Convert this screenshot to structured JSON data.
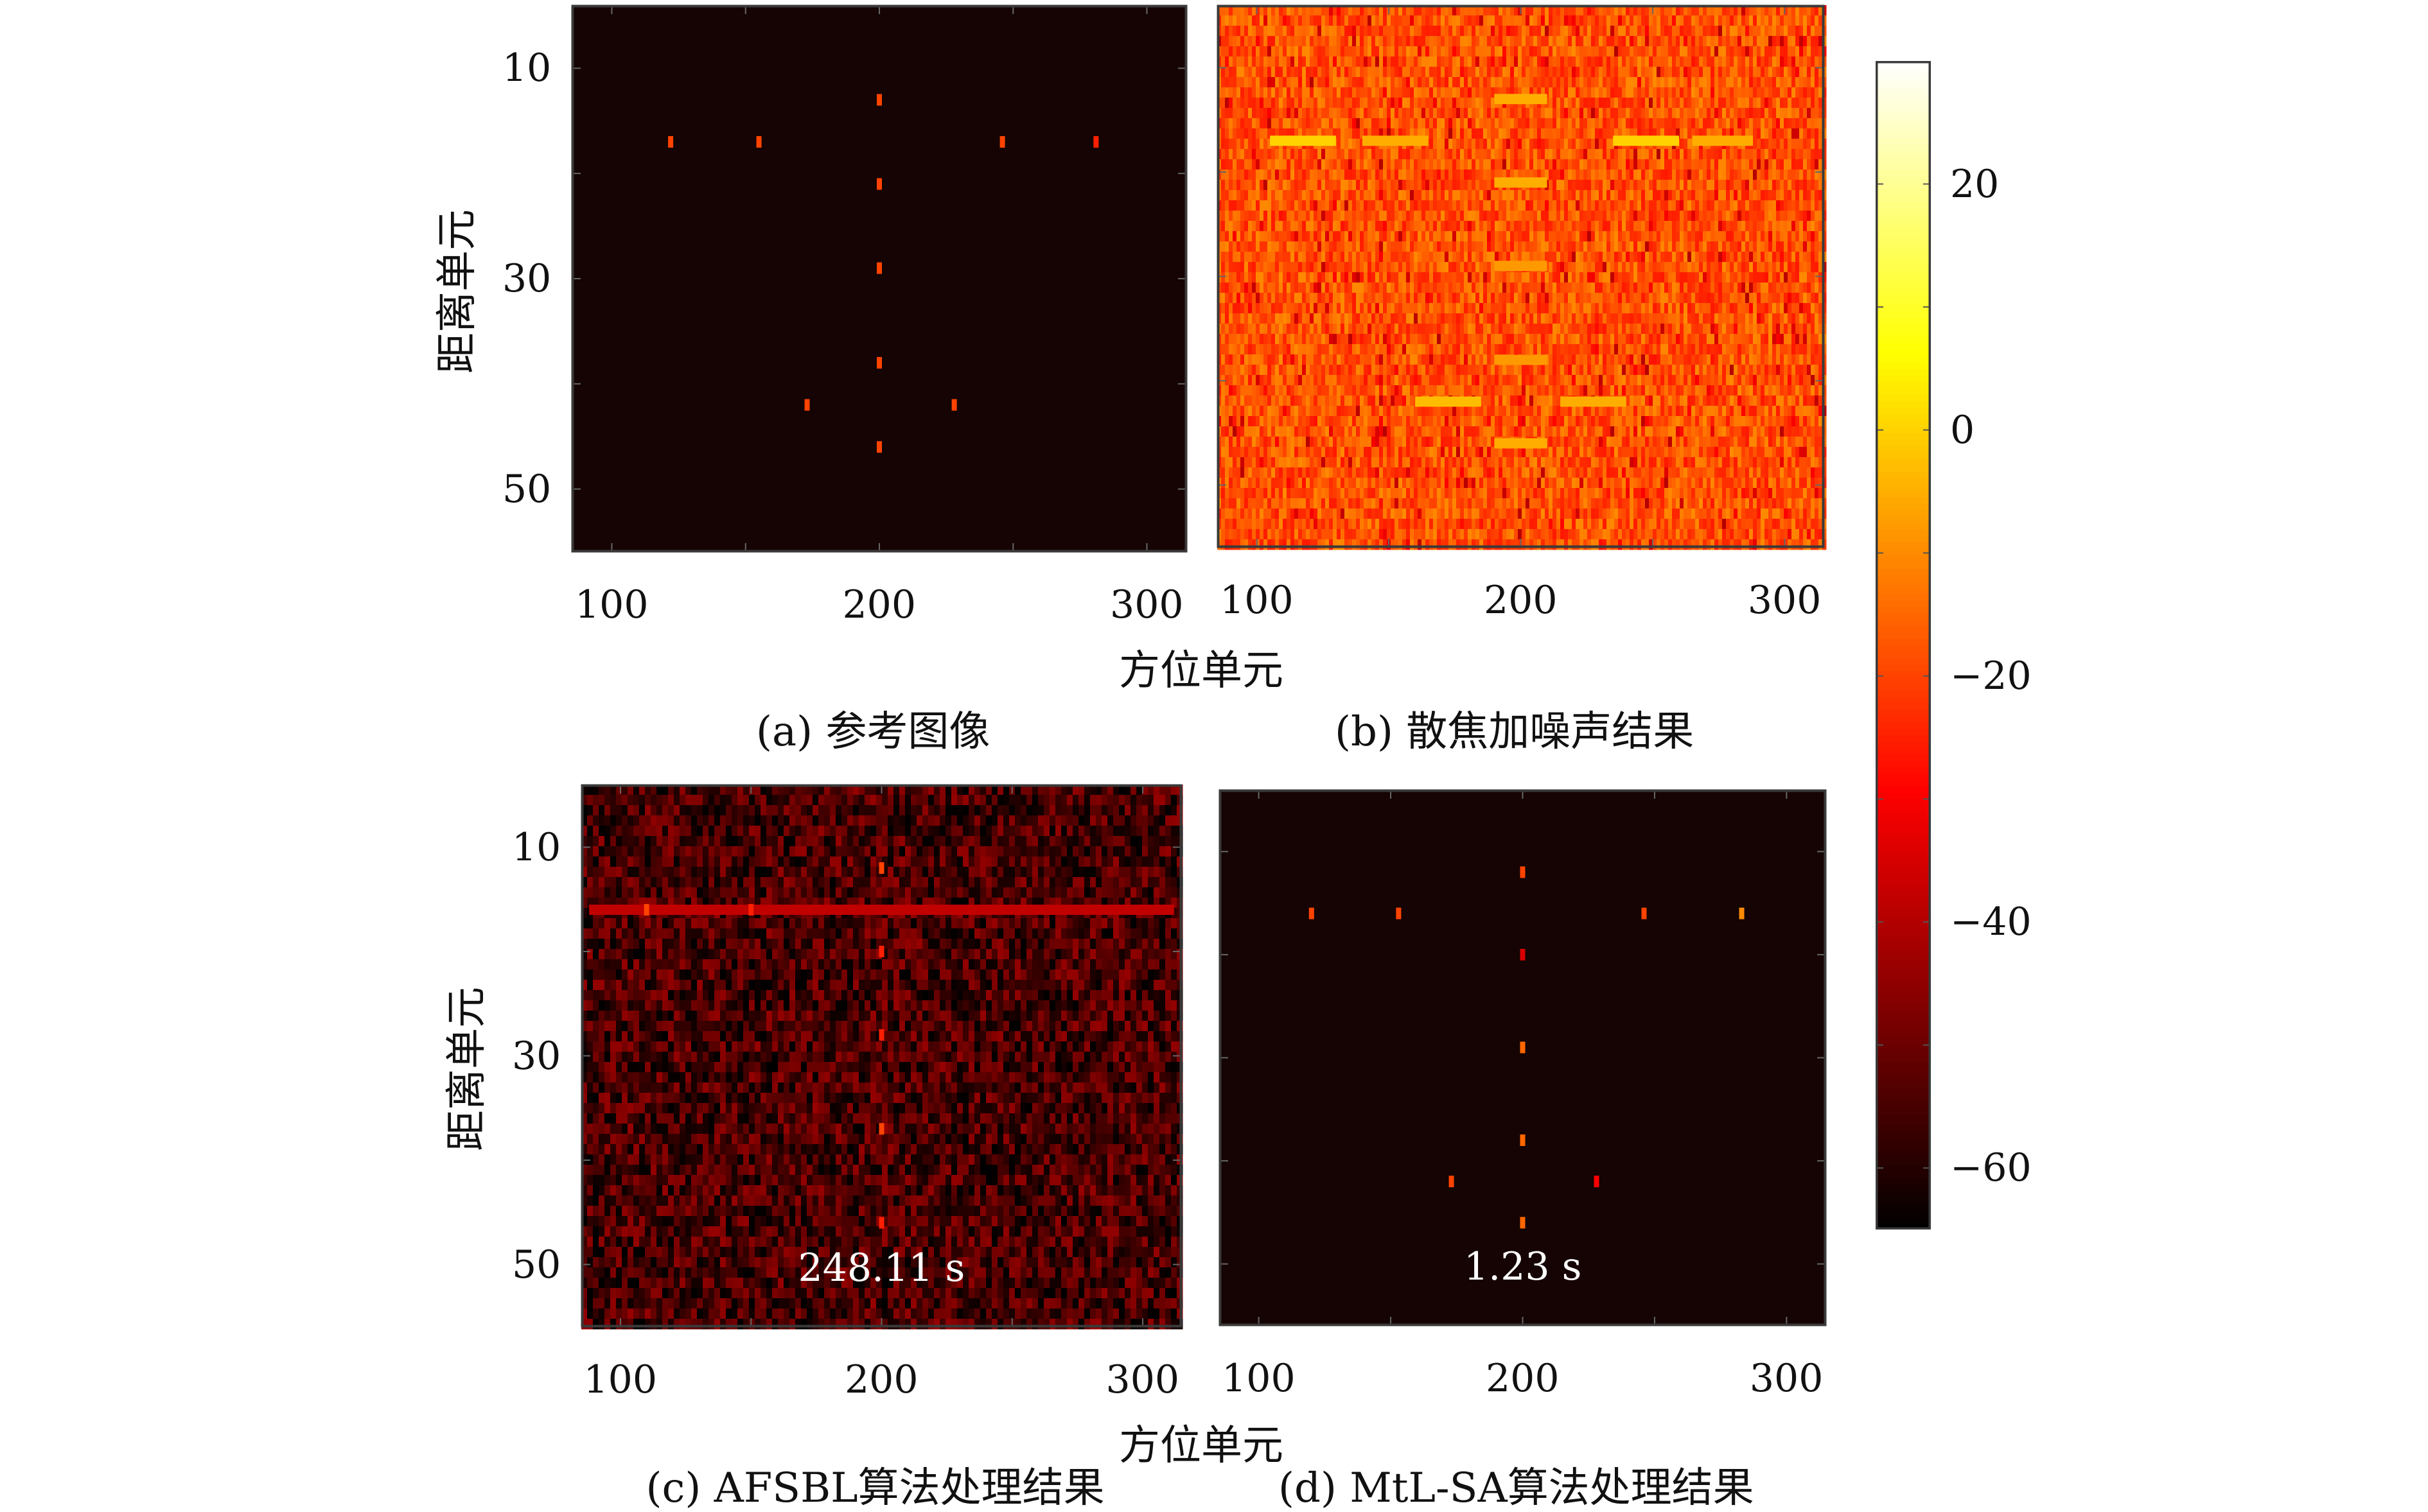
{
  "chart_data": {
    "type": "heatmap",
    "colormap": "hot",
    "colorbar": {
      "ticks": [
        20,
        0,
        -20,
        -40,
        -60
      ],
      "tick_labels": [
        "20",
        "0",
        "−20",
        "−40",
        "−60"
      ],
      "range": [
        -65,
        30
      ]
    },
    "x_range": [
      85,
      315
    ],
    "y_range": [
      4,
      56
    ],
    "panels": [
      {
        "id": "a",
        "caption": "(a) 参考图像",
        "background": "black",
        "xticks": [
          "100",
          "200",
          "300"
        ],
        "yticks": [
          "10",
          "30",
          "50"
        ],
        "ylabel": "距离单元",
        "xlabel": "方位单元",
        "time": "",
        "points": [
          {
            "x": 200,
            "y": 13,
            "v": -20
          },
          {
            "x": 122,
            "y": 17,
            "v": -20
          },
          {
            "x": 155,
            "y": 17,
            "v": -20
          },
          {
            "x": 246,
            "y": 17,
            "v": -20
          },
          {
            "x": 281,
            "y": 17,
            "v": -25
          },
          {
            "x": 200,
            "y": 21,
            "v": -20
          },
          {
            "x": 200,
            "y": 29,
            "v": -20
          },
          {
            "x": 200,
            "y": 38,
            "v": -20
          },
          {
            "x": 173,
            "y": 42,
            "v": -20
          },
          {
            "x": 228,
            "y": 42,
            "v": -20
          },
          {
            "x": 200,
            "y": 46,
            "v": -20
          }
        ]
      },
      {
        "id": "b",
        "caption": "(b) 散焦加噪声结果",
        "background": "noise-high",
        "xticks": [
          "100",
          "200",
          "300"
        ],
        "yticks": [],
        "ylabel": "",
        "xlabel": "",
        "time": "",
        "streaks": [
          {
            "x1": 190,
            "x2": 210,
            "y": 13,
            "v": -5
          },
          {
            "x1": 105,
            "x2": 130,
            "y": 17,
            "v": 0
          },
          {
            "x1": 140,
            "x2": 165,
            "y": 17,
            "v": -5
          },
          {
            "x1": 235,
            "x2": 260,
            "y": 17,
            "v": 0
          },
          {
            "x1": 265,
            "x2": 288,
            "y": 17,
            "v": -5
          },
          {
            "x1": 190,
            "x2": 210,
            "y": 21,
            "v": -5
          },
          {
            "x1": 190,
            "x2": 210,
            "y": 29,
            "v": -8
          },
          {
            "x1": 190,
            "x2": 210,
            "y": 38,
            "v": -8
          },
          {
            "x1": 160,
            "x2": 185,
            "y": 42,
            "v": -3
          },
          {
            "x1": 215,
            "x2": 240,
            "y": 42,
            "v": -5
          },
          {
            "x1": 190,
            "x2": 210,
            "y": 46,
            "v": -5
          }
        ]
      },
      {
        "id": "c",
        "caption": "(c) AFSBL算法处理结果",
        "background": "noise-low",
        "xticks": [
          "100",
          "200",
          "300"
        ],
        "yticks": [
          "10",
          "30",
          "50"
        ],
        "ylabel": "距离单元",
        "xlabel": "方位单元",
        "time": "248.11 s",
        "points": [
          {
            "x": 200,
            "y": 12,
            "v": -20
          },
          {
            "x": 110,
            "y": 16,
            "v": -20
          },
          {
            "x": 150,
            "y": 16,
            "v": -25
          },
          {
            "x": 200,
            "y": 20,
            "v": -25
          },
          {
            "x": 200,
            "y": 28,
            "v": -25
          },
          {
            "x": 200,
            "y": 37,
            "v": -20
          },
          {
            "x": 200,
            "y": 46,
            "v": -25
          }
        ],
        "streaks": [
          {
            "x1": 88,
            "x2": 312,
            "y": 16,
            "v": -38
          }
        ]
      },
      {
        "id": "d",
        "caption": "(d) MtL-SA算法处理结果",
        "background": "black",
        "xticks": [
          "100",
          "200",
          "300"
        ],
        "yticks": [],
        "ylabel": "",
        "xlabel": "",
        "time": "1.23 s",
        "points": [
          {
            "x": 200,
            "y": 12,
            "v": -20
          },
          {
            "x": 120,
            "y": 16,
            "v": -20
          },
          {
            "x": 153,
            "y": 16,
            "v": -20
          },
          {
            "x": 246,
            "y": 16,
            "v": -20
          },
          {
            "x": 283,
            "y": 16,
            "v": -10
          },
          {
            "x": 200,
            "y": 20,
            "v": -35
          },
          {
            "x": 200,
            "y": 29,
            "v": -15
          },
          {
            "x": 200,
            "y": 38,
            "v": -15
          },
          {
            "x": 173,
            "y": 42,
            "v": -20
          },
          {
            "x": 228,
            "y": 42,
            "v": -30
          },
          {
            "x": 200,
            "y": 46,
            "v": -15
          }
        ]
      }
    ]
  }
}
